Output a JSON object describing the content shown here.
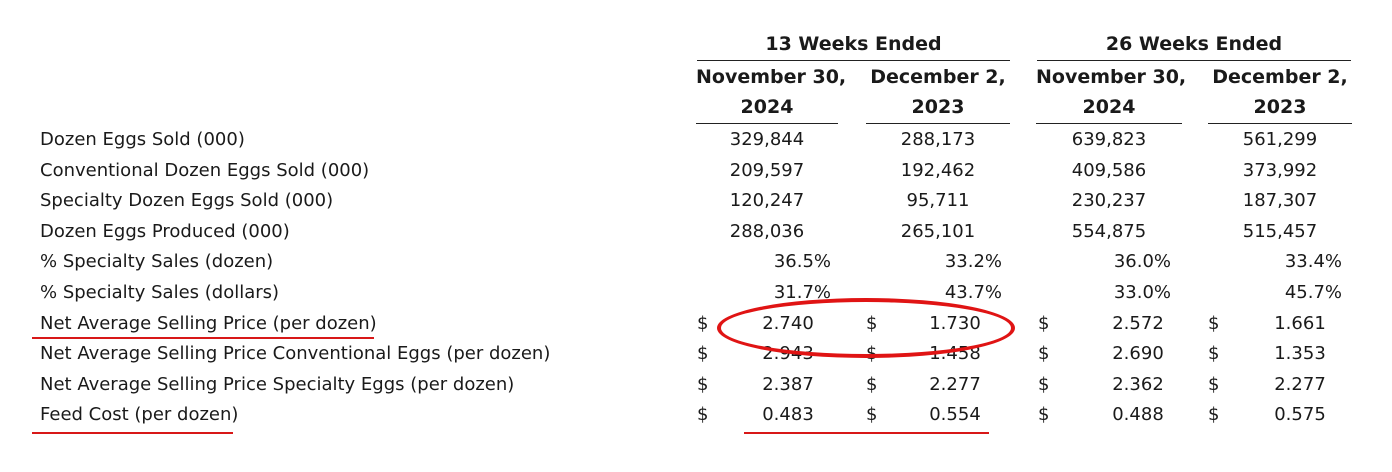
{
  "header": {
    "group_13": "13 Weeks Ended",
    "group_26": "26 Weeks Ended",
    "columns": [
      {
        "line1": "November 30,",
        "line2": "2024"
      },
      {
        "line1": "December 2,",
        "line2": "2023"
      },
      {
        "line1": "November 30,",
        "line2": "2024"
      },
      {
        "line1": "December 2,",
        "line2": "2023"
      }
    ]
  },
  "currency_symbol": "$",
  "rows": [
    {
      "label": "Dozen Eggs Sold (000)",
      "type": "num",
      "values": [
        "329,844",
        "288,173",
        "639,823",
        "561,299"
      ]
    },
    {
      "label": "Conventional Dozen Eggs Sold (000)",
      "type": "num",
      "values": [
        "209,597",
        "192,462",
        "409,586",
        "373,992"
      ]
    },
    {
      "label": "Specialty Dozen Eggs Sold (000)",
      "type": "num",
      "values": [
        "120,247",
        "95,711",
        "230,237",
        "187,307"
      ]
    },
    {
      "label": "Dozen Eggs Produced (000)",
      "type": "num",
      "values": [
        "288,036",
        "265,101",
        "554,875",
        "515,457"
      ]
    },
    {
      "label": "% Specialty Sales (dozen)",
      "type": "pct",
      "values": [
        "36.5%",
        "33.2%",
        "36.0%",
        "33.4%"
      ]
    },
    {
      "label": "% Specialty Sales (dollars)",
      "type": "pct",
      "values": [
        "31.7%",
        "43.7%",
        "33.0%",
        "45.7%"
      ]
    },
    {
      "label": "Net Average Selling Price (per dozen)",
      "type": "dollar",
      "values": [
        "2.740",
        "1.730",
        "2.572",
        "1.661"
      ]
    },
    {
      "label": "Net Average Selling Price Conventional Eggs (per dozen)",
      "type": "dollar",
      "values": [
        "2.943",
        "1.458",
        "2.690",
        "1.353"
      ]
    },
    {
      "label": "Net Average Selling Price Specialty Eggs (per dozen)",
      "type": "dollar",
      "values": [
        "2.387",
        "2.277",
        "2.362",
        "2.277"
      ]
    },
    {
      "label": "Feed Cost (per dozen)",
      "type": "dollar",
      "values": [
        "0.483",
        "0.554",
        "0.488",
        "0.575"
      ]
    }
  ],
  "annotations": {
    "highlight_color": "#e01414"
  }
}
